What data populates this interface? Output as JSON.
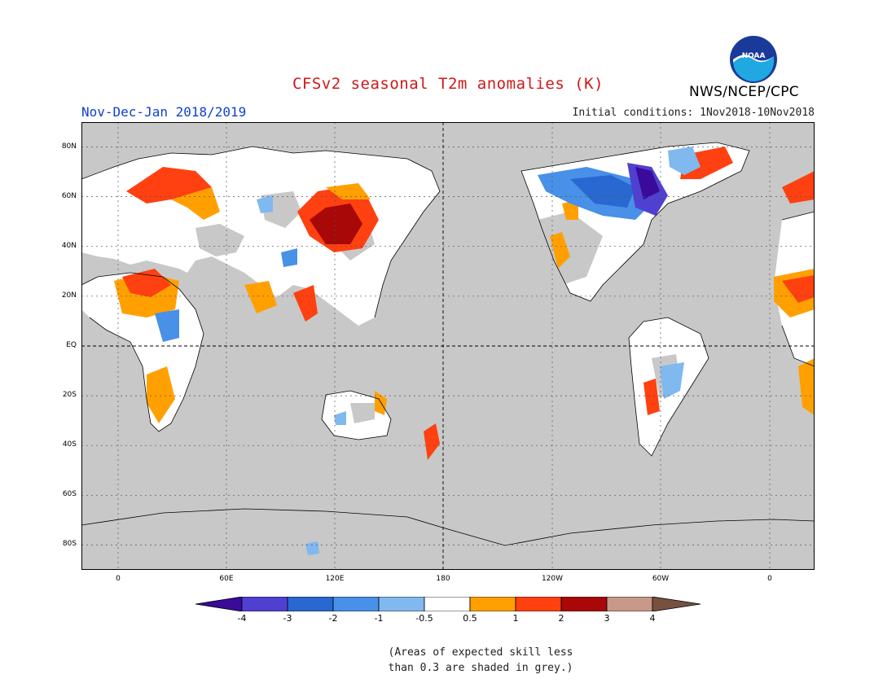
{
  "header": {
    "title": "CFSv2 seasonal T2m anomalies (K)",
    "period": "Nov-Dec-Jan 2018/2019",
    "initial_conditions": "Initial conditions: 1Nov2018-10Nov2018",
    "agency": "NWS/NCEP/CPC",
    "logo_text": "NOAA"
  },
  "map": {
    "projection": "cylindrical equidistant, centered 180",
    "lat_labels": [
      "80N",
      "60N",
      "40N",
      "20N",
      "EQ",
      "20S",
      "40S",
      "60S",
      "80S"
    ],
    "lon_labels": [
      "0",
      "60E",
      "120E",
      "180",
      "120W",
      "60W",
      "0"
    ],
    "grey_shading": "low skill areas",
    "colors": {
      "grey": "#c8c8c8",
      "land_white": "#ffffff",
      "ocean": "#c8c8c8"
    }
  },
  "legend": {
    "labels": [
      "-4",
      "-3",
      "-2",
      "-1",
      "-0.5",
      "0.5",
      "1",
      "2",
      "3",
      "4"
    ],
    "colors": [
      "#3a0a9a",
      "#5040d0",
      "#2868d0",
      "#4890e8",
      "#80b8f0",
      "#ffffff",
      "#ffa000",
      "#ff4010",
      "#a80808",
      "#c89888",
      "#785040"
    ]
  },
  "note": {
    "line1": "(Areas of expected skill less",
    "line2": "than 0.3 are shaded in grey.)"
  }
}
